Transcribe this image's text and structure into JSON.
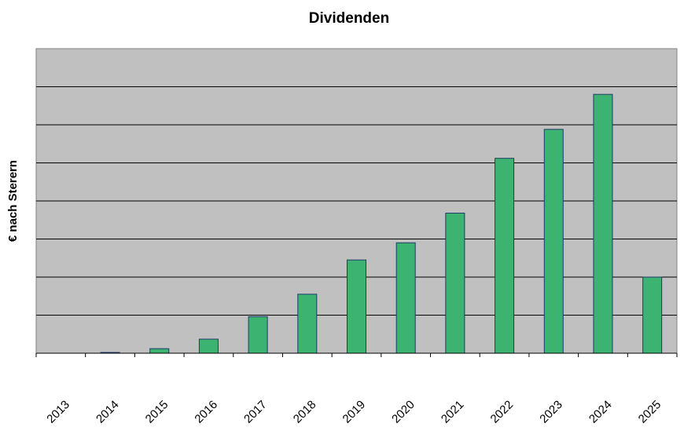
{
  "chart_data": {
    "type": "bar",
    "title": "Dividenden",
    "xlabel": "",
    "ylabel": "€ nach Sterern",
    "categories": [
      "2013",
      "2014",
      "2015",
      "2016",
      "2017",
      "2018",
      "2019",
      "2020",
      "2021",
      "2022",
      "2023",
      "2024",
      "2025"
    ],
    "values": [
      0,
      0.02,
      0.12,
      0.37,
      0.96,
      1.55,
      2.45,
      2.9,
      3.68,
      5.12,
      5.88,
      6.8,
      2.0
    ],
    "ylim": [
      0,
      8
    ],
    "grid": true,
    "legend": "none",
    "colors": {
      "plot_background": "#c0c0c0",
      "bar_fill": "#3cb371",
      "bar_stroke": "#1f3a6b",
      "gridline": "#000000"
    }
  }
}
